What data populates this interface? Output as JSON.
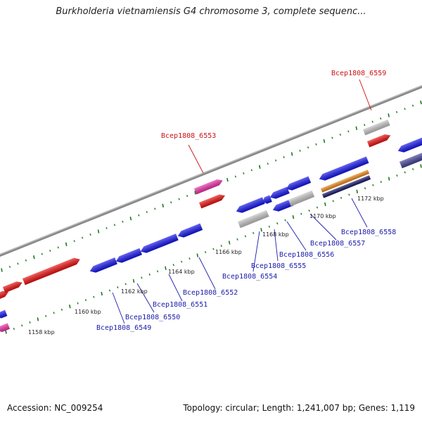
{
  "title": "Burkholderia vietnamiensis G4 chromosome 3, complete sequenc...",
  "footer": {
    "accession": "Accession: NC_009254",
    "summary": "Topology: circular; Length: 1,241,007 bp; Genes: 1,119"
  },
  "colors": {
    "blue_gene": "#1515ee",
    "red_gene": "#ee1111",
    "pink_gene": "#ee33aa",
    "gray_gene": "#c8c8c8",
    "orange_gene": "#f08a1a",
    "navy_gene": "#15156a",
    "slate_gene": "#44449a",
    "backbone": "#888888",
    "tick": "#1a7a1a",
    "label_blue": "#1a1aaa",
    "label_red": "#cc1111"
  },
  "position_labels": [
    "1158 kbp",
    "1160 kbp",
    "1162 kbp",
    "1164 kbp",
    "1166 kbp",
    "1168 kbp",
    "1170 kbp",
    "1172 kbp"
  ],
  "gene_labels_forward": [
    "Bcep1808_6553",
    "Bcep1808_6559"
  ],
  "gene_labels_reverse": [
    "Bcep1808_6549",
    "Bcep1808_6550",
    "Bcep1808_6551",
    "Bcep1808_6552",
    "Bcep1808_6554",
    "Bcep1808_6555",
    "Bcep1808_6556",
    "Bcep1808_6557",
    "Bcep1808_6558"
  ]
}
